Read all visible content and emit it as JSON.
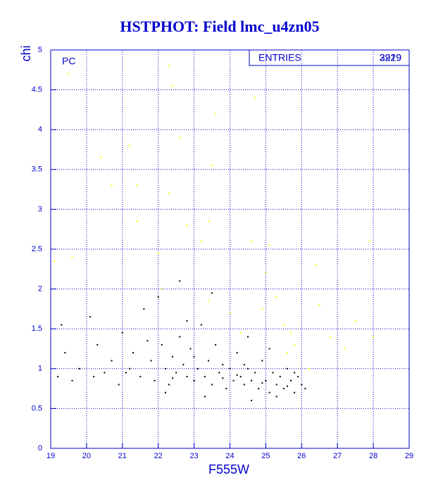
{
  "chart_data": {
    "type": "scatter",
    "title": "HSTPHOT: Field lmc_u4zn05",
    "x_label": "F555W",
    "y_label": "chi",
    "annotation": "PC",
    "entries_label": "ENTRIES",
    "entries": [
      "3929",
      "2219"
    ],
    "xlim": [
      19,
      29
    ],
    "xticks": [
      19,
      20,
      21,
      22,
      23,
      24,
      25,
      26,
      27,
      28,
      29
    ],
    "ylim": [
      0,
      5
    ],
    "yticks": [
      0,
      0.5,
      1,
      1.5,
      2,
      2.5,
      3,
      3.5,
      4,
      4.5,
      5
    ],
    "grid": true,
    "axis_color": "#0000cc",
    "series": [
      {
        "color": "#000000",
        "x": [
          19.2,
          19.4,
          19.6,
          19.8,
          19.3,
          20.1,
          20.3,
          20.5,
          20.7,
          20.9,
          21.0,
          21.2,
          21.3,
          21.5,
          21.6,
          21.8,
          21.9,
          22.0,
          22.1,
          22.2,
          22.3,
          22.4,
          22.5,
          22.6,
          22.7,
          22.8,
          22.9,
          23.0,
          23.1,
          23.2,
          23.3,
          23.4,
          23.5,
          23.6,
          23.7,
          23.8,
          23.9,
          24.0,
          24.1,
          24.2,
          24.3,
          24.4,
          24.5,
          24.6,
          24.7,
          24.8,
          24.9,
          25.0,
          25.1,
          25.2,
          25.3,
          25.4,
          25.5,
          25.6,
          25.7,
          25.8,
          25.9,
          26.0,
          26.1,
          23.5,
          22.8,
          24.5,
          25.1,
          22.2,
          23.3,
          24.6,
          25.3,
          21.1,
          20.2,
          24.2,
          23.8,
          24.9,
          25.6,
          23.0,
          22.4,
          24.4,
          25.8,
          21.7,
          22.6
        ],
        "values": [
          0.9,
          1.2,
          0.85,
          1.0,
          1.55,
          1.65,
          1.3,
          0.95,
          1.1,
          0.8,
          1.45,
          1.0,
          1.2,
          0.9,
          1.75,
          1.1,
          0.85,
          1.9,
          1.3,
          1.0,
          0.8,
          1.15,
          0.95,
          1.4,
          1.05,
          0.9,
          1.25,
          0.85,
          1.0,
          1.55,
          0.9,
          1.1,
          0.8,
          1.3,
          0.95,
          1.05,
          0.75,
          1.0,
          0.85,
          1.2,
          0.9,
          0.8,
          1.0,
          0.85,
          0.95,
          0.75,
          1.1,
          0.85,
          0.7,
          0.95,
          0.8,
          0.9,
          0.75,
          1.0,
          0.85,
          0.7,
          0.9,
          0.8,
          0.75,
          1.95,
          1.6,
          1.4,
          1.25,
          0.7,
          0.65,
          0.6,
          0.65,
          0.95,
          0.9,
          0.92,
          0.88,
          0.82,
          0.78,
          1.15,
          0.88,
          1.05,
          0.95,
          1.35,
          2.1
        ]
      },
      {
        "color": "#ffff00",
        "x": [
          19.5,
          20.4,
          20.7,
          21.2,
          21.4,
          22.3,
          22.4,
          22.6,
          22.3,
          23.2,
          23.5,
          23.6,
          23.4,
          24.7,
          24.6,
          25.1,
          25.3,
          25.0,
          26.4,
          27.9,
          27.5,
          26.8,
          25.8,
          25.5,
          26.5,
          19.1,
          19.6,
          22.1,
          24.0,
          23.4,
          24.3,
          25.6,
          26.2,
          27.2,
          28.0,
          22.8,
          24.9,
          25.7,
          21.4,
          22.0
        ],
        "values": [
          4.7,
          3.65,
          3.3,
          3.8,
          2.85,
          4.8,
          4.55,
          3.9,
          3.2,
          2.6,
          3.55,
          4.2,
          2.85,
          4.4,
          2.6,
          2.55,
          1.9,
          2.2,
          2.3,
          2.6,
          1.6,
          1.4,
          1.3,
          1.55,
          1.8,
          2.35,
          2.4,
          2.0,
          1.7,
          1.85,
          1.45,
          1.2,
          1.0,
          1.25,
          1.4,
          2.8,
          1.75,
          1.45,
          3.3,
          2.45
        ]
      }
    ]
  }
}
